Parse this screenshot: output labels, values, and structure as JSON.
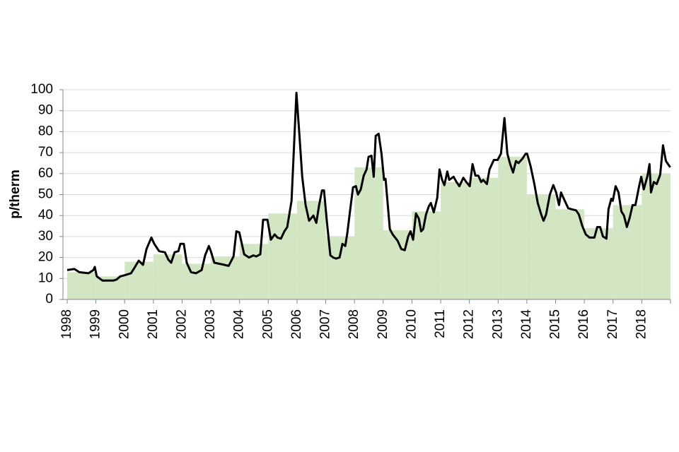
{
  "chart_data": {
    "type": "line",
    "ylabel": "p/therm",
    "xlim": [
      1998,
      2019
    ],
    "xticks": [
      1998,
      1999,
      2000,
      2001,
      2002,
      2003,
      2004,
      2005,
      2006,
      2007,
      2008,
      2009,
      2010,
      2011,
      2012,
      2013,
      2014,
      2015,
      2016,
      2017,
      2018
    ],
    "ylim": [
      0,
      100
    ],
    "yticks": [
      0,
      10,
      20,
      30,
      40,
      50,
      60,
      70,
      80,
      90,
      100
    ],
    "grid": true,
    "series": [
      {
        "type": "step-area",
        "color": "#d3e6c3",
        "x": [
          1998,
          1999,
          2000,
          2001,
          2002,
          2003,
          2004,
          2005,
          2006,
          2007,
          2008,
          2009,
          2010,
          2011,
          2012,
          2013,
          2014,
          2015,
          2016,
          2017,
          2018
        ],
        "values": [
          13,
          11,
          18,
          21.5,
          17,
          20.5,
          26.5,
          41,
          47,
          30,
          63,
          33,
          42,
          56,
          58,
          68,
          50,
          43,
          34,
          45,
          60
        ]
      },
      {
        "type": "line",
        "color": "#000000",
        "x": [
          1998.0,
          1998.25,
          1998.42,
          1998.74,
          1998.91,
          1998.96,
          1999.03,
          1999.23,
          1999.6,
          1999.72,
          1999.85,
          1999.99,
          2000.22,
          2000.34,
          2000.49,
          2000.64,
          2000.76,
          2000.93,
          2001.03,
          2001.2,
          2001.4,
          2001.52,
          2001.62,
          2001.74,
          2001.87,
          2001.94,
          2002.06,
          2002.16,
          2002.31,
          2002.48,
          2002.61,
          2002.68,
          2002.8,
          2002.93,
          2003.0,
          2003.12,
          2003.3,
          2003.47,
          2003.62,
          2003.79,
          2003.89,
          2003.99,
          2004.16,
          2004.33,
          2004.48,
          2004.58,
          2004.72,
          2004.82,
          2004.97,
          2005.09,
          2005.22,
          2005.32,
          2005.44,
          2005.56,
          2005.66,
          2005.81,
          2005.98,
          2006.08,
          2006.18,
          2006.3,
          2006.42,
          2006.57,
          2006.67,
          2006.77,
          2006.87,
          2006.94,
          2007.04,
          2007.16,
          2007.26,
          2007.36,
          2007.48,
          2007.58,
          2007.68,
          2007.75,
          2007.88,
          2007.95,
          2008.05,
          2008.12,
          2008.22,
          2008.32,
          2008.42,
          2008.49,
          2008.59,
          2008.67,
          2008.74,
          2008.84,
          2008.94,
          2009.03,
          2009.08,
          2009.23,
          2009.33,
          2009.5,
          2009.63,
          2009.75,
          2009.87,
          2009.95,
          2010.04,
          2010.14,
          2010.24,
          2010.32,
          2010.39,
          2010.49,
          2010.59,
          2010.66,
          2010.76,
          2010.88,
          2010.96,
          2011.05,
          2011.13,
          2011.23,
          2011.3,
          2011.45,
          2011.55,
          2011.65,
          2011.79,
          2011.89,
          2012.01,
          2012.11,
          2012.21,
          2012.31,
          2012.41,
          2012.48,
          2012.61,
          2012.7,
          2012.85,
          2012.98,
          2013.1,
          2013.22,
          2013.32,
          2013.42,
          2013.52,
          2013.62,
          2013.71,
          2013.84,
          2013.96,
          2014.01,
          2014.13,
          2014.26,
          2014.38,
          2014.5,
          2014.58,
          2014.67,
          2014.8,
          2014.92,
          2015.02,
          2015.12,
          2015.19,
          2015.32,
          2015.44,
          2015.56,
          2015.71,
          2015.81,
          2015.93,
          2016.05,
          2016.18,
          2016.35,
          2016.45,
          2016.55,
          2016.65,
          2016.77,
          2016.84,
          2016.94,
          2016.99,
          2017.09,
          2017.19,
          2017.29,
          2017.38,
          2017.48,
          2017.58,
          2017.68,
          2017.78,
          2017.9,
          2017.98,
          2018.07,
          2018.2,
          2018.27,
          2018.32,
          2018.42,
          2018.52,
          2018.64,
          2018.74,
          2018.84,
          2018.99
        ],
        "values": [
          14,
          14.5,
          13,
          12.5,
          14,
          15.5,
          11,
          9,
          9,
          9.5,
          11,
          11.5,
          12.5,
          15,
          18.5,
          16.5,
          24,
          29.5,
          26.5,
          23,
          22.5,
          19,
          17.5,
          22.5,
          23,
          26.5,
          26.5,
          17.5,
          13,
          12.5,
          13.5,
          14,
          21,
          25.5,
          23,
          17.5,
          17,
          16.5,
          16,
          20.5,
          32.5,
          32,
          21.5,
          20,
          21,
          20.5,
          21.5,
          38,
          38,
          28.5,
          31,
          29.5,
          29,
          32.5,
          34.5,
          47,
          98.5,
          79,
          58.5,
          45,
          37.5,
          40,
          36.5,
          45,
          52,
          52,
          37,
          21,
          20,
          19.5,
          20,
          26.5,
          25.5,
          31.5,
          46,
          53.5,
          54,
          50,
          52.5,
          59,
          62,
          68,
          68.5,
          58.5,
          78,
          79,
          69.5,
          57,
          57.5,
          33.5,
          31,
          28,
          24,
          23.5,
          30,
          32.5,
          28.5,
          41,
          38.5,
          32.5,
          33.5,
          40.5,
          44.5,
          46,
          41.5,
          48.5,
          62,
          57,
          54.5,
          61,
          57,
          58.5,
          56,
          54,
          58,
          56,
          54,
          64.5,
          59,
          59,
          56,
          57,
          55,
          62,
          66.5,
          66.5,
          69.5,
          86.5,
          69.5,
          64.5,
          60.5,
          66,
          65,
          67,
          69.5,
          69.5,
          63.5,
          55,
          46,
          40.5,
          37.5,
          40.5,
          50,
          54.5,
          51,
          45,
          51,
          47,
          43.5,
          43,
          42.5,
          40.5,
          35,
          31,
          29.5,
          29.5,
          34.5,
          34.5,
          30,
          29,
          43,
          48,
          47,
          54,
          51,
          42,
          40,
          34.5,
          39,
          45,
          45,
          53.5,
          58.5,
          52.5,
          59,
          64.5,
          51,
          56,
          55,
          59.5,
          73.5,
          66,
          63
        ]
      }
    ]
  }
}
